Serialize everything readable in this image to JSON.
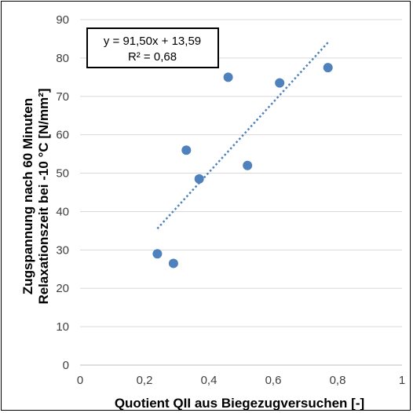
{
  "chart_data": {
    "type": "scatter",
    "xlabel": "Quotient QII aus Biegezugversuchen [-]",
    "ylabel_line1": "Zugspannung nach 60 Minuten",
    "ylabel_line2": "Relaxationszeit bei -10 °C [N/mm²]",
    "xlim": [
      0,
      1
    ],
    "ylim": [
      0,
      90
    ],
    "x_ticks": [
      "0",
      "0,2",
      "0,4",
      "0,6",
      "0,8",
      "1"
    ],
    "y_ticks": [
      "0",
      "10",
      "20",
      "30",
      "40",
      "50",
      "60",
      "70",
      "80",
      "90"
    ],
    "grid": "horizontal",
    "points": [
      {
        "x": 0.24,
        "y": 29
      },
      {
        "x": 0.29,
        "y": 26.5
      },
      {
        "x": 0.33,
        "y": 56
      },
      {
        "x": 0.37,
        "y": 48.5
      },
      {
        "x": 0.46,
        "y": 75
      },
      {
        "x": 0.52,
        "y": 52
      },
      {
        "x": 0.62,
        "y": 73.5
      },
      {
        "x": 0.77,
        "y": 77.5
      }
    ],
    "trendline": {
      "type": "linear",
      "slope": 91.5,
      "intercept": 13.59,
      "x_range": [
        0.24,
        0.77
      ],
      "equation": "y = 91,50x + 13,59",
      "r2": "R² = 0,68"
    },
    "colors": {
      "marker": "#4f81bd",
      "trendline": "#4f81bd",
      "grid": "#d9d9d9"
    }
  }
}
